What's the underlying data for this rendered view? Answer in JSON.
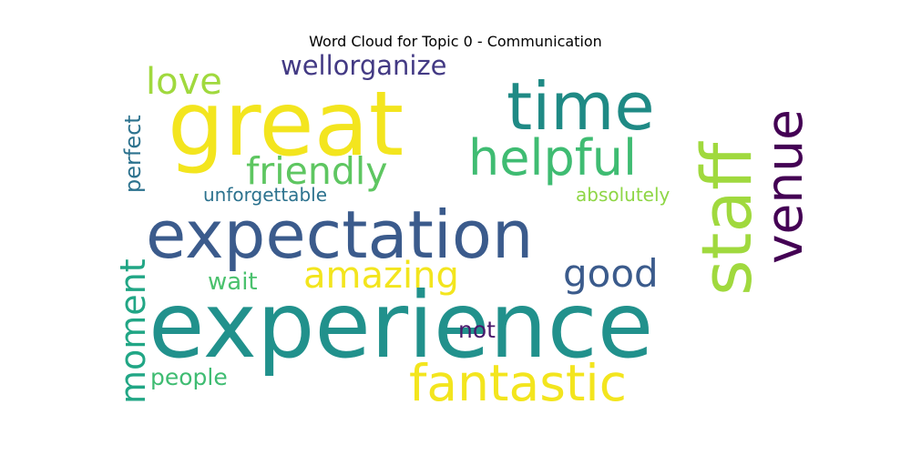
{
  "title": "Word Cloud for Topic 0 - Communication",
  "words": [
    {
      "text": "experience",
      "color": "#21918c"
    },
    {
      "text": "great",
      "color": "#f3e51e"
    },
    {
      "text": "expectation",
      "color": "#3b5b8c"
    },
    {
      "text": "time",
      "color": "#1f8a85"
    },
    {
      "text": "staff",
      "color": "#a0d93e"
    },
    {
      "text": "helpful",
      "color": "#3fbc72"
    },
    {
      "text": "friendly",
      "color": "#5ec661"
    },
    {
      "text": "venue",
      "color": "#440154"
    },
    {
      "text": "fantastic",
      "color": "#f3e51e"
    },
    {
      "text": "amazing",
      "color": "#f3e51e"
    },
    {
      "text": "good",
      "color": "#3b5b8c"
    },
    {
      "text": "moment",
      "color": "#21a685"
    },
    {
      "text": "love",
      "color": "#a0d93e"
    },
    {
      "text": "wellorganize",
      "color": "#433a84"
    },
    {
      "text": "perfect",
      "color": "#2c728e"
    },
    {
      "text": "unforgettable",
      "color": "#2c728e"
    },
    {
      "text": "absolutely",
      "color": "#8ed645"
    },
    {
      "text": "wait",
      "color": "#4ac16d"
    },
    {
      "text": "not",
      "color": "#481a6c"
    },
    {
      "text": "people",
      "color": "#3fbc72"
    }
  ]
}
